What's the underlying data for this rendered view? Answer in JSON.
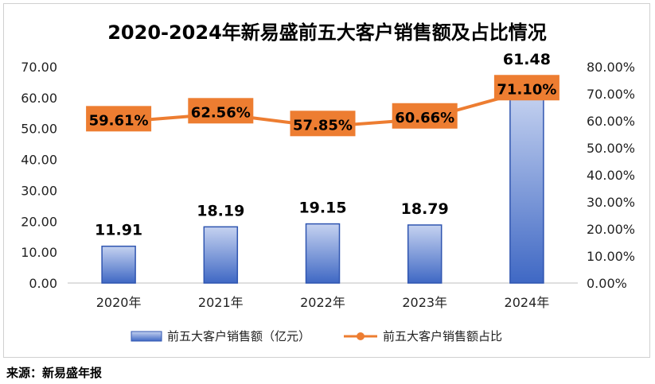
{
  "chart_data": {
    "type": "bar",
    "title": "2020-2024年新易盛前五大客户销售额及占比情况",
    "categories": [
      "2020年",
      "2021年",
      "2022年",
      "2023年",
      "2024年"
    ],
    "series": [
      {
        "name": "前五大客户销售额（亿元）",
        "type": "bar",
        "axis": "left",
        "values": [
          11.91,
          18.19,
          19.15,
          18.79,
          61.48
        ],
        "labels": [
          "11.91",
          "18.19",
          "19.15",
          "18.79",
          "61.48"
        ]
      },
      {
        "name": "前五大客户销售额占比",
        "type": "line",
        "axis": "right",
        "values": [
          59.61,
          62.56,
          57.85,
          60.66,
          71.1
        ],
        "labels": [
          "59.61%",
          "62.56%",
          "57.85%",
          "60.66%",
          "71.10%"
        ]
      }
    ],
    "y_left": {
      "min": 0,
      "max": 70,
      "step": 10,
      "ticks": [
        "0.00",
        "10.00",
        "20.00",
        "30.00",
        "40.00",
        "50.00",
        "60.00",
        "70.00"
      ]
    },
    "y_right": {
      "min": 0,
      "max": 80,
      "step": 10,
      "ticks": [
        "0.00%",
        "10.00%",
        "20.00%",
        "30.00%",
        "40.00%",
        "50.00%",
        "60.00%",
        "70.00%",
        "80.00%"
      ]
    },
    "grid": false,
    "legend": "bottom-center",
    "colors": {
      "bar_top": "#c5d2f0",
      "bar_bottom": "#3f68c4",
      "bar_border": "#2f55b0",
      "line": "#ed7d31",
      "label_box": "#ed7d31",
      "axis_line": "#bfbfbf"
    }
  },
  "source": "来源：新易盛年报"
}
